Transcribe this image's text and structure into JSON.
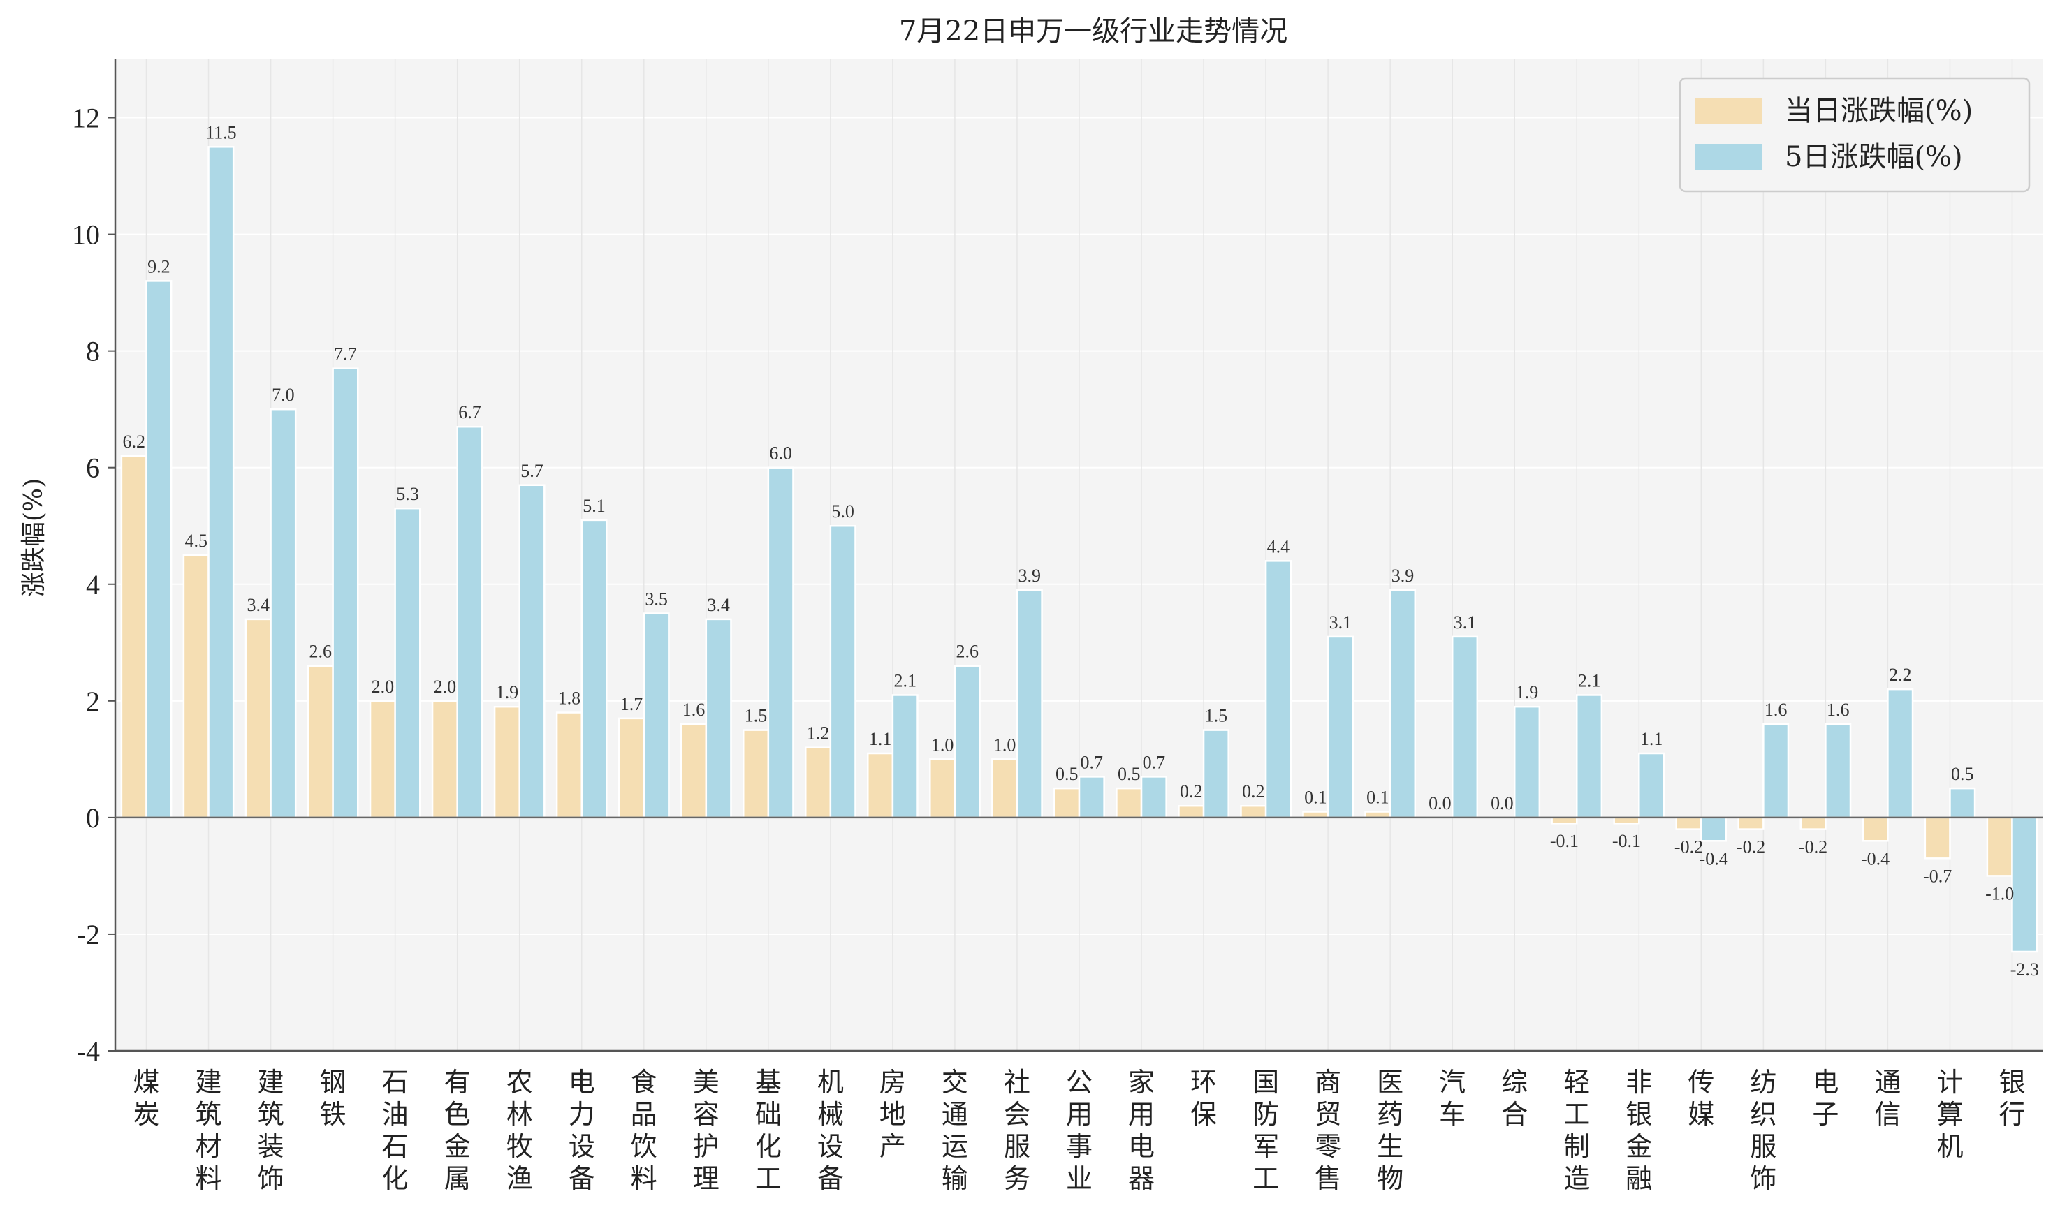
{
  "chart_data": {
    "type": "bar",
    "title": "7月22日申万一级行业走势情况",
    "ylabel": "涨跌幅(%)",
    "xlabel": "",
    "ylim": [
      -4,
      13
    ],
    "yticks": [
      -4,
      -2,
      0,
      2,
      4,
      6,
      8,
      10,
      12
    ],
    "grid": true,
    "legend_position": "top-right",
    "categories": [
      "煤炭",
      "建筑材料",
      "建筑装饰",
      "钢铁",
      "石油石化",
      "有色金属",
      "农林牧渔",
      "电力设备",
      "食品饮料",
      "美容护理",
      "基础化工",
      "机械设备",
      "房地产",
      "交通运输",
      "社会服务",
      "公用事业",
      "家用电器",
      "环保",
      "国防军工",
      "商贸零售",
      "医药生物",
      "汽车",
      "综合",
      "轻工制造",
      "非银金融",
      "传媒",
      "纺织服饰",
      "电子",
      "通信",
      "计算机",
      "银行"
    ],
    "series": [
      {
        "name": "当日涨跌幅(%)",
        "color": "#f5deb3",
        "values": [
          6.2,
          4.5,
          3.4,
          2.6,
          2.0,
          2.0,
          1.9,
          1.8,
          1.7,
          1.6,
          1.5,
          1.2,
          1.1,
          1.0,
          1.0,
          0.5,
          0.5,
          0.2,
          0.2,
          0.1,
          0.1,
          0.0,
          0.0,
          -0.1,
          -0.1,
          -0.2,
          -0.2,
          -0.2,
          -0.4,
          -0.7,
          -1.0
        ]
      },
      {
        "name": "5日涨跌幅(%)",
        "color": "#add8e6",
        "values": [
          9.2,
          11.5,
          7.0,
          7.7,
          5.3,
          6.7,
          5.7,
          5.1,
          3.5,
          3.4,
          6.0,
          5.0,
          2.1,
          2.6,
          3.9,
          0.7,
          0.7,
          1.5,
          4.4,
          3.1,
          3.9,
          3.1,
          1.9,
          2.1,
          1.1,
          -0.4,
          1.6,
          1.6,
          2.2,
          0.5,
          -2.3
        ]
      }
    ],
    "colors": {
      "plot_bg": "#f4f4f4",
      "grid": "#ffffff",
      "axis": "#555555"
    }
  }
}
